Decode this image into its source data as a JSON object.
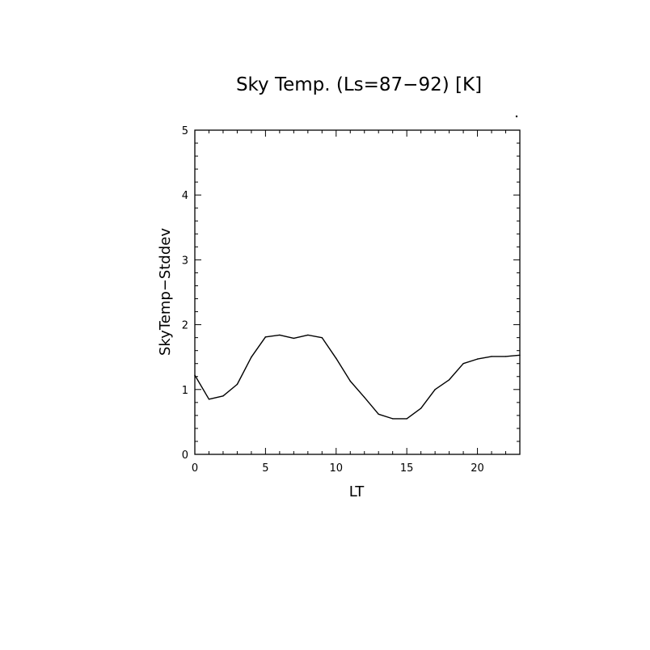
{
  "chart_data": {
    "type": "line",
    "title": "Sky Temp. (Ls=87−92) [K]",
    "xlabel": "LT",
    "ylabel": "SkyTemp−Stddev",
    "xlim": [
      0,
      23
    ],
    "ylim": [
      0,
      5
    ],
    "x_ticks": [
      0,
      5,
      10,
      15,
      20
    ],
    "y_ticks": [
      0,
      1,
      2,
      3,
      4,
      5
    ],
    "x_tick_labels": [
      "0",
      "5",
      "10",
      "15",
      "20"
    ],
    "y_tick_labels": [
      "0",
      "1",
      "2",
      "3",
      "4",
      "5"
    ],
    "grid": false,
    "series": [
      {
        "x": [
          0,
          1,
          2,
          3,
          4,
          5,
          6,
          7,
          8,
          9,
          10,
          11,
          12,
          13,
          14,
          15,
          16,
          17,
          18,
          19,
          20,
          21,
          22,
          23
        ],
        "values": [
          1.22,
          0.85,
          0.9,
          1.08,
          1.5,
          1.81,
          1.84,
          1.79,
          1.84,
          1.8,
          1.48,
          1.13,
          0.88,
          0.62,
          0.55,
          0.55,
          0.71,
          1.0,
          1.15,
          1.4,
          1.47,
          1.51,
          1.51,
          1.53
        ]
      }
    ]
  }
}
